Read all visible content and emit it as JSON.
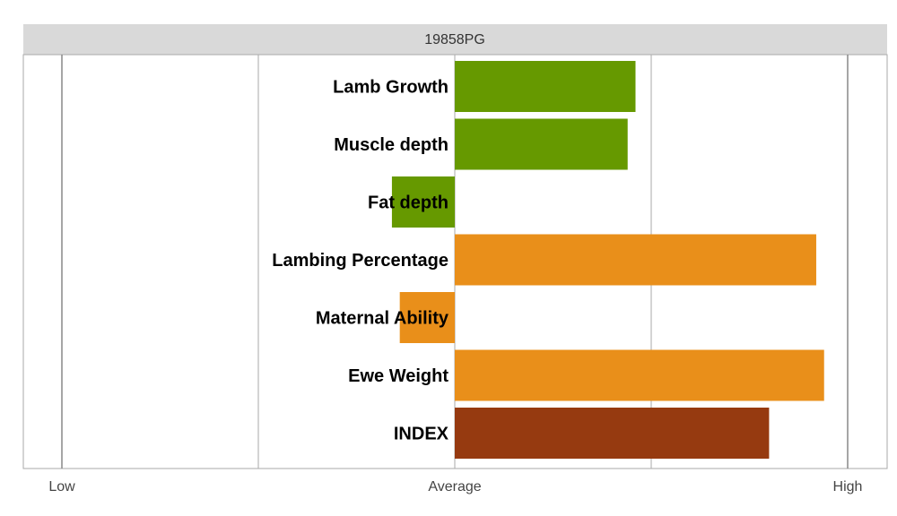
{
  "chart_data": {
    "type": "bar",
    "orientation": "horizontal",
    "title": "19858PG",
    "categories": [
      "Lamb Growth",
      "Muscle depth",
      "Fat depth",
      "Lambing Percentage",
      "Maternal Ability",
      "Ewe Weight",
      "INDEX"
    ],
    "values": [
      0.46,
      0.44,
      -0.16,
      0.92,
      -0.14,
      0.94,
      0.8
    ],
    "colors": [
      "#669900",
      "#669900",
      "#669900",
      "#E98F1A",
      "#E98F1A",
      "#E98F1A",
      "#963A10"
    ],
    "xlim": [
      -1,
      1
    ],
    "x_ticks": [
      {
        "value": -1,
        "label": "Low"
      },
      {
        "value": 0,
        "label": "Average"
      },
      {
        "value": 1,
        "label": "High"
      }
    ],
    "gridlines": [
      -1,
      -0.5,
      0,
      0.5,
      1
    ],
    "title_bar_color": "#d9d9d9",
    "grid_color": "#aaaaaa"
  }
}
